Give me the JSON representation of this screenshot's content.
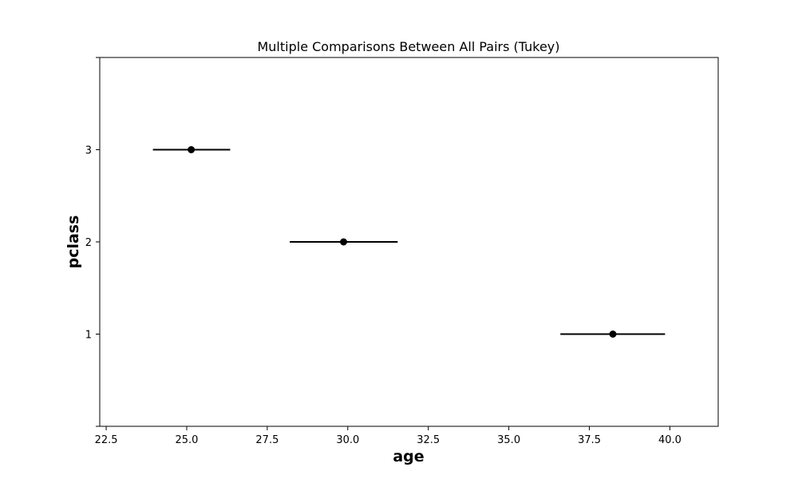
{
  "chart_data": {
    "type": "scatter",
    "title": "Multiple Comparisons Between All Pairs (Tukey)",
    "xlabel": "age",
    "ylabel": "pclass",
    "x_ticks": [
      "22.5",
      "25.0",
      "27.5",
      "30.0",
      "32.5",
      "35.0",
      "37.5",
      "40.0"
    ],
    "y_ticks": [
      "1",
      "2",
      "3"
    ],
    "xlim": [
      22.3,
      41.5
    ],
    "ylim": [
      0,
      4
    ],
    "grid": false,
    "series": [
      {
        "points": [
          {
            "group": "1",
            "y": 1,
            "x": 38.23,
            "low": 36.6,
            "high": 39.85
          },
          {
            "group": "2",
            "y": 2,
            "x": 29.87,
            "low": 28.2,
            "high": 31.55
          },
          {
            "group": "3",
            "y": 3,
            "x": 25.14,
            "low": 23.95,
            "high": 26.35
          }
        ]
      }
    ],
    "colors": {
      "marker": "#000000",
      "interval": "#000000",
      "axes": "#000000"
    }
  }
}
